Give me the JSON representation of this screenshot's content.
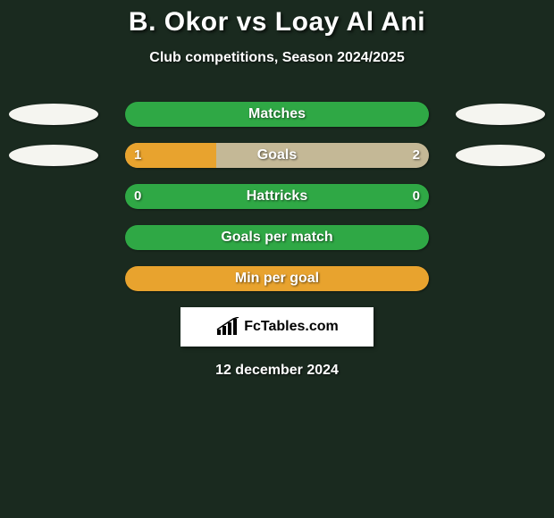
{
  "title": "B. Okor vs Loay Al Ani",
  "subtitle": "Club competitions, Season 2024/2025",
  "date_line": "12 december 2024",
  "watermark_text": "FcTables.com",
  "colors": {
    "background": "#1a2a1f",
    "oval": "#f5f5f0",
    "bar_orange": "#e8a32e",
    "bar_beige": "#c4b896",
    "bar_green": "#2fa845",
    "text": "#ffffff"
  },
  "bars": [
    {
      "label": "Matches",
      "show_ovals": true,
      "left_val": "",
      "right_val": "",
      "left_pct": 0,
      "right_pct": 0,
      "left_color": "#e8a32e",
      "right_color": "#c4b896",
      "bg_color": "#2fa845"
    },
    {
      "label": "Goals",
      "show_ovals": true,
      "left_val": "1",
      "right_val": "2",
      "left_pct": 30,
      "right_pct": 70,
      "left_color": "#e8a32e",
      "right_color": "#c4b896",
      "bg_color": "#c4b896"
    },
    {
      "label": "Hattricks",
      "show_ovals": false,
      "left_val": "0",
      "right_val": "0",
      "left_pct": 0,
      "right_pct": 0,
      "left_color": "#e8a32e",
      "right_color": "#c4b896",
      "bg_color": "#2fa845"
    },
    {
      "label": "Goals per match",
      "show_ovals": false,
      "left_val": "",
      "right_val": "",
      "left_pct": 0,
      "right_pct": 0,
      "left_color": "#e8a32e",
      "right_color": "#c4b896",
      "bg_color": "#2fa845"
    },
    {
      "label": "Min per goal",
      "show_ovals": false,
      "left_val": "",
      "right_val": "",
      "left_pct": 0,
      "right_pct": 100,
      "left_color": "#e8a32e",
      "right_color": "#e8a32e",
      "bg_color": "#e8a32e"
    }
  ]
}
